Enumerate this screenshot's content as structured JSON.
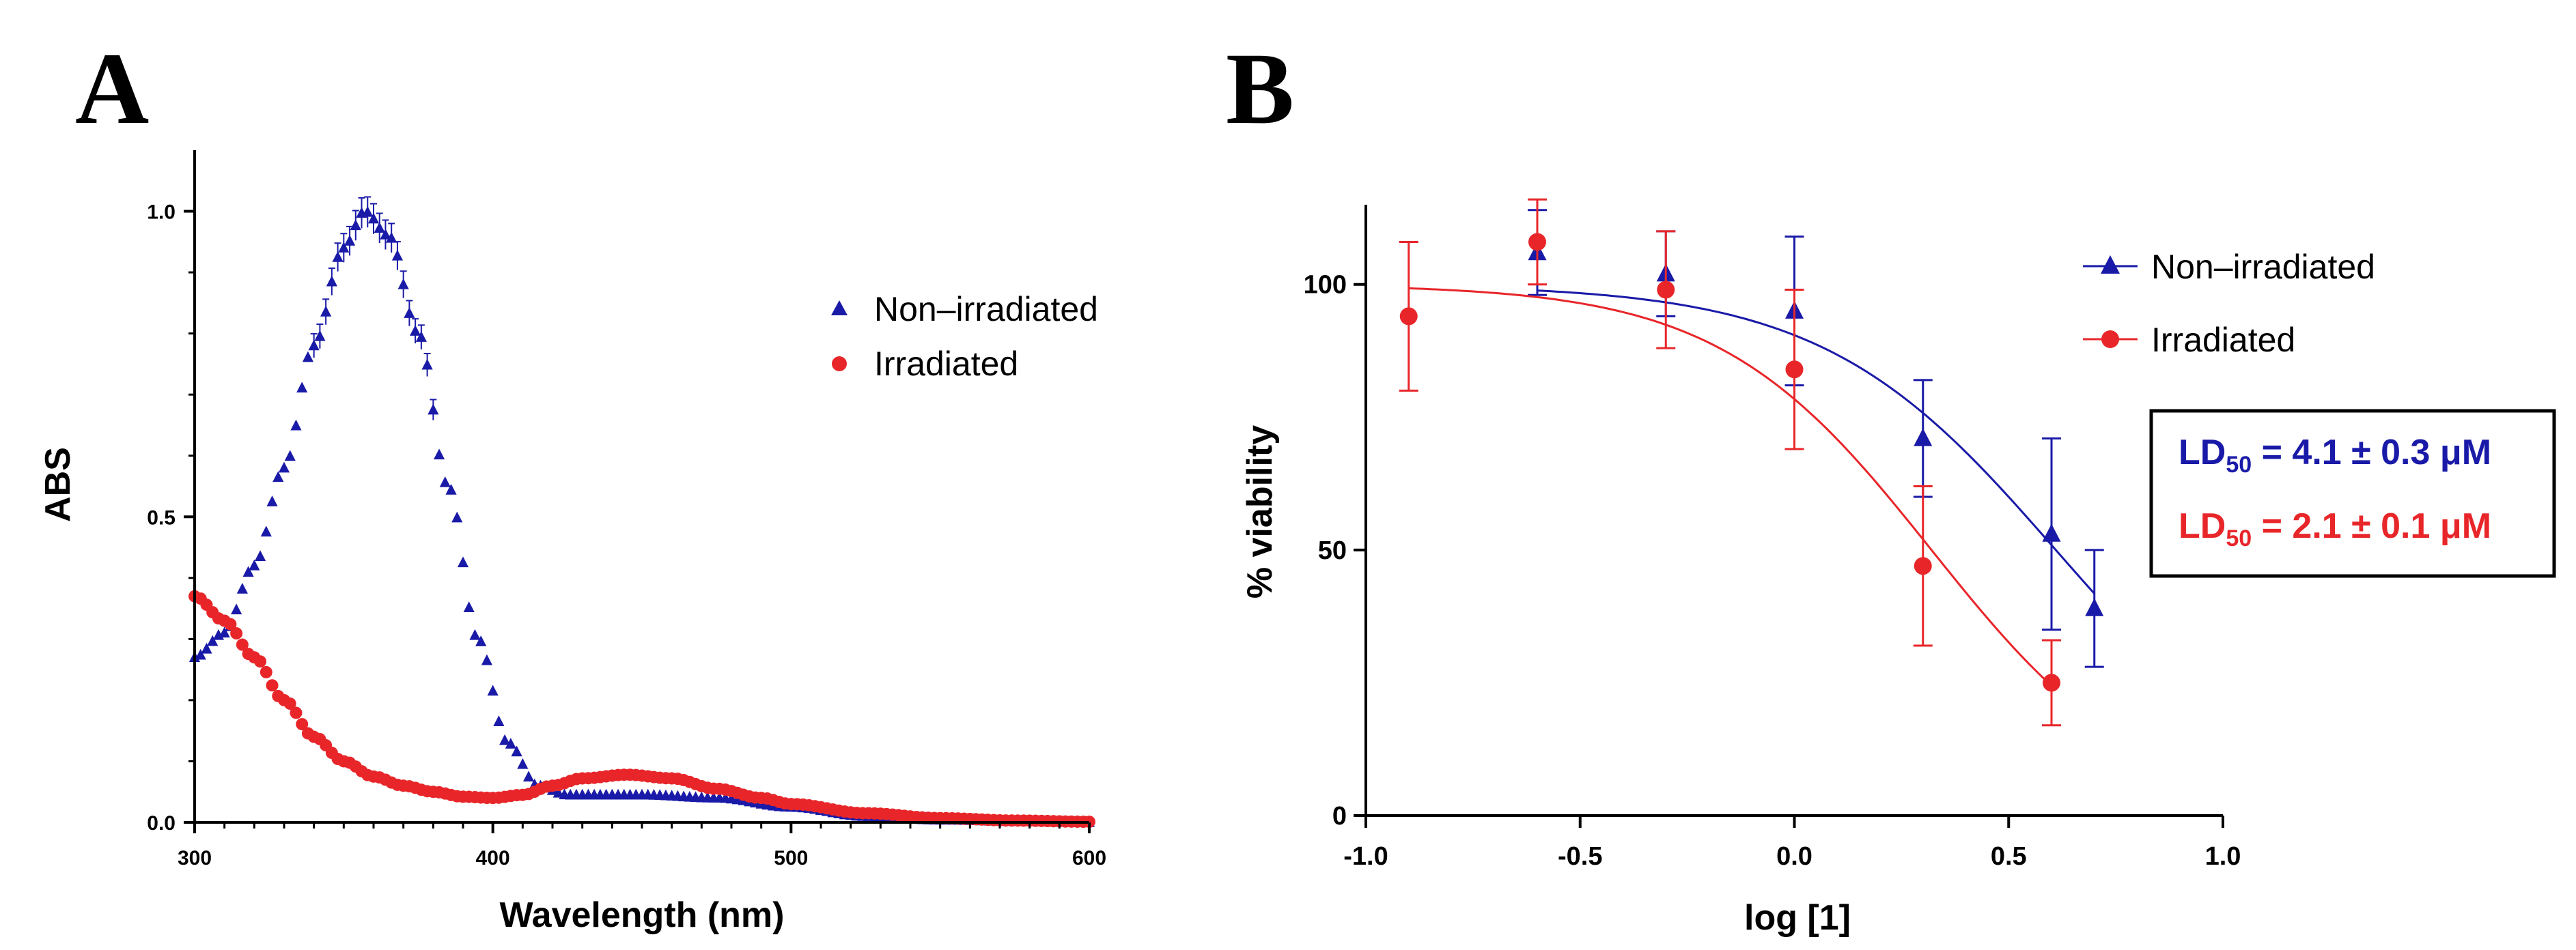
{
  "colors": {
    "non_irradiated": "#1a1aa8",
    "irradiated": "#e8262a",
    "axis": "#000000"
  },
  "chart_data": [
    {
      "panel": "A",
      "type": "scatter",
      "xlabel": "Wavelength (nm)",
      "ylabel": "ABS",
      "xlim": [
        300,
        600
      ],
      "ylim": [
        0,
        1.1
      ],
      "xticks": [
        300,
        400,
        500,
        600
      ],
      "xtick_labels": [
        "300",
        "400",
        "500",
        "600"
      ],
      "yticks": [
        0.0,
        0.5,
        1.0
      ],
      "ytick_labels": [
        "0.0",
        "0.5",
        "1.0"
      ],
      "legend_position": "top-right",
      "series": [
        {
          "name": "Non–irradiated",
          "marker": "triangle",
          "color": "#1a1aa8",
          "profile_points": [
            [
              300,
              0.27
            ],
            [
              310,
              0.31
            ],
            [
              320,
              0.42
            ],
            [
              330,
              0.58
            ],
            [
              340,
              0.78
            ],
            [
              350,
              0.94
            ],
            [
              357,
              1.0
            ],
            [
              365,
              0.96
            ],
            [
              375,
              0.8
            ],
            [
              385,
              0.55
            ],
            [
              395,
              0.3
            ],
            [
              405,
              0.13
            ],
            [
              415,
              0.06
            ],
            [
              425,
              0.045
            ],
            [
              450,
              0.045
            ],
            [
              475,
              0.04
            ],
            [
              500,
              0.025
            ],
            [
              525,
              0.01
            ],
            [
              550,
              0.004
            ],
            [
              575,
              0.002
            ],
            [
              600,
              0.0
            ]
          ],
          "sample_step": 2
        },
        {
          "name": "Irradiated",
          "marker": "circle",
          "color": "#e8262a",
          "profile_points": [
            [
              300,
              0.37
            ],
            [
              310,
              0.33
            ],
            [
              320,
              0.27
            ],
            [
              330,
              0.2
            ],
            [
              340,
              0.14
            ],
            [
              350,
              0.1
            ],
            [
              360,
              0.075
            ],
            [
              370,
              0.06
            ],
            [
              380,
              0.05
            ],
            [
              390,
              0.042
            ],
            [
              400,
              0.04
            ],
            [
              410,
              0.045
            ],
            [
              420,
              0.06
            ],
            [
              430,
              0.072
            ],
            [
              445,
              0.078
            ],
            [
              460,
              0.072
            ],
            [
              475,
              0.055
            ],
            [
              490,
              0.04
            ],
            [
              500,
              0.03
            ],
            [
              525,
              0.015
            ],
            [
              550,
              0.007
            ],
            [
              575,
              0.003
            ],
            [
              600,
              0.001
            ]
          ],
          "sample_step": 2
        }
      ]
    },
    {
      "panel": "B",
      "type": "scatter",
      "xlabel": "log [1]",
      "ylabel": "% viability",
      "xlim": [
        -1.0,
        1.0
      ],
      "ylim": [
        0,
        115
      ],
      "xticks": [
        -1.0,
        -0.5,
        0.0,
        0.5,
        1.0
      ],
      "xtick_labels": [
        "-1.0",
        "-0.5",
        "0.0",
        "0.5",
        "1.0"
      ],
      "yticks": [
        0,
        50,
        100
      ],
      "ytick_labels": [
        "0",
        "50",
        "100"
      ],
      "legend_position": "top-right",
      "series": [
        {
          "name": "Non–irradiated",
          "marker": "triangle",
          "color": "#1a1aa8",
          "x": [
            -0.6,
            -0.3,
            0.0,
            0.3,
            0.6,
            0.7
          ],
          "y": [
            106,
            102,
            95,
            71,
            53,
            39
          ],
          "err": [
            8,
            8,
            14,
            11,
            18,
            11
          ],
          "fit": {
            "top": 100,
            "bottom": 0,
            "logEC50": 0.61,
            "hill": 1.6,
            "x_range": [
              -0.6,
              0.7
            ]
          }
        },
        {
          "name": "Irradiated",
          "marker": "circle",
          "color": "#e8262a",
          "x": [
            -0.9,
            -0.6,
            -0.3,
            0.0,
            0.3,
            0.6
          ],
          "y": [
            94,
            108,
            99,
            84,
            47,
            25
          ],
          "err": [
            14,
            8,
            11,
            15,
            15,
            8
          ],
          "fit": {
            "top": 100,
            "bottom": 0,
            "logEC50": 0.32,
            "hill": 1.75,
            "x_range": [
              -0.9,
              0.6
            ]
          }
        }
      ],
      "annotations": [
        {
          "prefix": "LD",
          "sub": "50",
          "text": " = 4.1 ± 0.3 μM",
          "color": "#1a1aa8"
        },
        {
          "prefix": "LD",
          "sub": "50",
          "text": " = 2.1 ± 0.1 μM",
          "color": "#e8262a"
        }
      ]
    }
  ],
  "panel_labels": [
    "A",
    "B"
  ]
}
